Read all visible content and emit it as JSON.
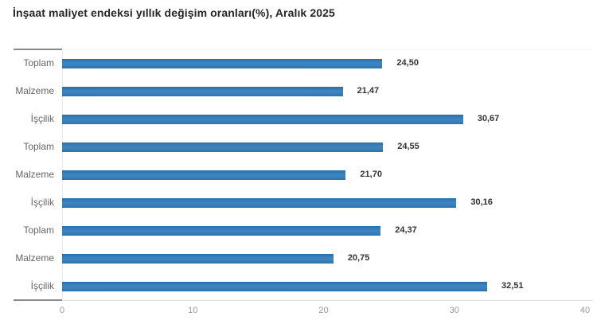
{
  "chart_data": {
    "type": "bar",
    "orientation": "horizontal",
    "title": "İnşaat maliyet endeksi yıllık değişim oranları(%), Aralık 2025",
    "categories": [
      "Toplam",
      "Malzeme",
      "İşçilik",
      "Toplam",
      "Malzeme",
      "İşçilik",
      "Toplam",
      "Malzeme",
      "İşçilik"
    ],
    "values": [
      24.5,
      21.47,
      30.67,
      24.55,
      21.7,
      30.16,
      24.37,
      20.75,
      32.51
    ],
    "value_labels": [
      "24,50",
      "21,47",
      "30,67",
      "24,55",
      "21,70",
      "30,16",
      "24,37",
      "20,75",
      "32,51"
    ],
    "xlabel": "",
    "ylabel": "",
    "xlim": [
      0,
      40
    ],
    "x_ticks": [
      "0",
      "10",
      "20",
      "30",
      "40"
    ],
    "grid": false,
    "legend": "none",
    "bar_color": "#2f7cb9",
    "colors": {
      "bar": "#2f7cb9",
      "title_text": "#262626",
      "category_text": "#666666",
      "value_text": "#333333",
      "tick_text": "#999999",
      "axis_dark_segment": "#8a8a8a",
      "axis_light_line": "#dcdcdc"
    }
  }
}
